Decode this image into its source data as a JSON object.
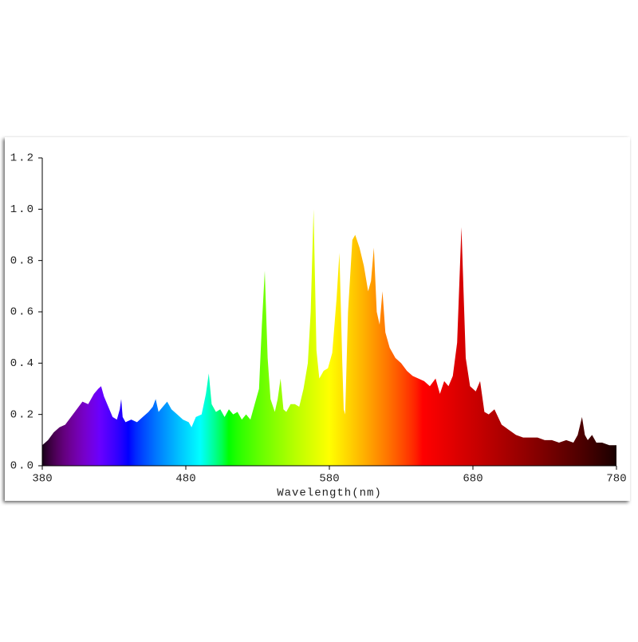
{
  "chart_data": {
    "type": "area",
    "x_label": "Wavelength(nm)",
    "x": [
      380,
      384,
      388,
      392,
      396,
      400,
      404,
      408,
      412,
      416,
      419,
      421,
      423,
      426,
      429,
      432,
      434,
      435,
      436,
      438,
      442,
      446,
      450,
      454,
      457,
      459,
      461,
      464,
      467,
      470,
      474,
      478,
      482,
      484,
      487,
      491,
      494,
      496,
      498,
      501,
      504,
      507,
      510,
      513,
      516,
      519,
      522,
      525,
      528,
      531,
      533,
      535,
      537,
      539,
      542,
      544,
      546,
      548,
      550,
      553,
      556,
      559,
      562,
      565,
      567,
      569,
      571,
      573,
      576,
      579,
      582,
      585,
      587,
      589,
      590,
      591,
      593,
      596,
      598,
      601,
      604,
      607,
      609,
      611,
      613,
      615,
      617,
      619,
      622,
      626,
      630,
      634,
      638,
      642,
      646,
      650,
      654,
      657,
      660,
      663,
      666,
      669,
      672,
      675,
      678,
      682,
      685,
      688,
      691,
      695,
      700,
      705,
      710,
      715,
      720,
      725,
      730,
      735,
      740,
      745,
      750,
      753,
      756,
      758,
      760,
      763,
      766,
      770,
      775,
      780
    ],
    "values": [
      0.08,
      0.1,
      0.13,
      0.15,
      0.16,
      0.19,
      0.22,
      0.25,
      0.24,
      0.28,
      0.3,
      0.31,
      0.27,
      0.23,
      0.19,
      0.18,
      0.22,
      0.26,
      0.19,
      0.17,
      0.18,
      0.17,
      0.19,
      0.21,
      0.23,
      0.26,
      0.21,
      0.23,
      0.25,
      0.22,
      0.2,
      0.18,
      0.17,
      0.15,
      0.19,
      0.2,
      0.28,
      0.36,
      0.24,
      0.21,
      0.22,
      0.19,
      0.22,
      0.2,
      0.21,
      0.18,
      0.2,
      0.18,
      0.24,
      0.3,
      0.55,
      0.76,
      0.42,
      0.26,
      0.21,
      0.26,
      0.34,
      0.22,
      0.21,
      0.24,
      0.24,
      0.23,
      0.3,
      0.4,
      0.6,
      1.0,
      0.45,
      0.34,
      0.37,
      0.38,
      0.44,
      0.65,
      0.83,
      0.4,
      0.22,
      0.2,
      0.6,
      0.88,
      0.9,
      0.85,
      0.78,
      0.68,
      0.72,
      0.85,
      0.6,
      0.55,
      0.68,
      0.52,
      0.46,
      0.42,
      0.4,
      0.37,
      0.35,
      0.34,
      0.33,
      0.31,
      0.34,
      0.28,
      0.33,
      0.31,
      0.35,
      0.48,
      0.93,
      0.42,
      0.31,
      0.29,
      0.33,
      0.21,
      0.2,
      0.22,
      0.16,
      0.14,
      0.12,
      0.11,
      0.11,
      0.11,
      0.1,
      0.1,
      0.09,
      0.1,
      0.09,
      0.12,
      0.19,
      0.12,
      0.1,
      0.12,
      0.09,
      0.09,
      0.08,
      0.08
    ],
    "xlim": [
      380,
      780
    ],
    "xticks": [
      380,
      480,
      580,
      680,
      780
    ],
    "ylim": [
      0,
      1.2
    ],
    "yticks": [
      {
        "value": 0,
        "label": "0.0"
      },
      0.2,
      0.4,
      0.6,
      0.8,
      {
        "value": 1,
        "label": "1.0"
      },
      1.2
    ],
    "color": "spectrum"
  }
}
